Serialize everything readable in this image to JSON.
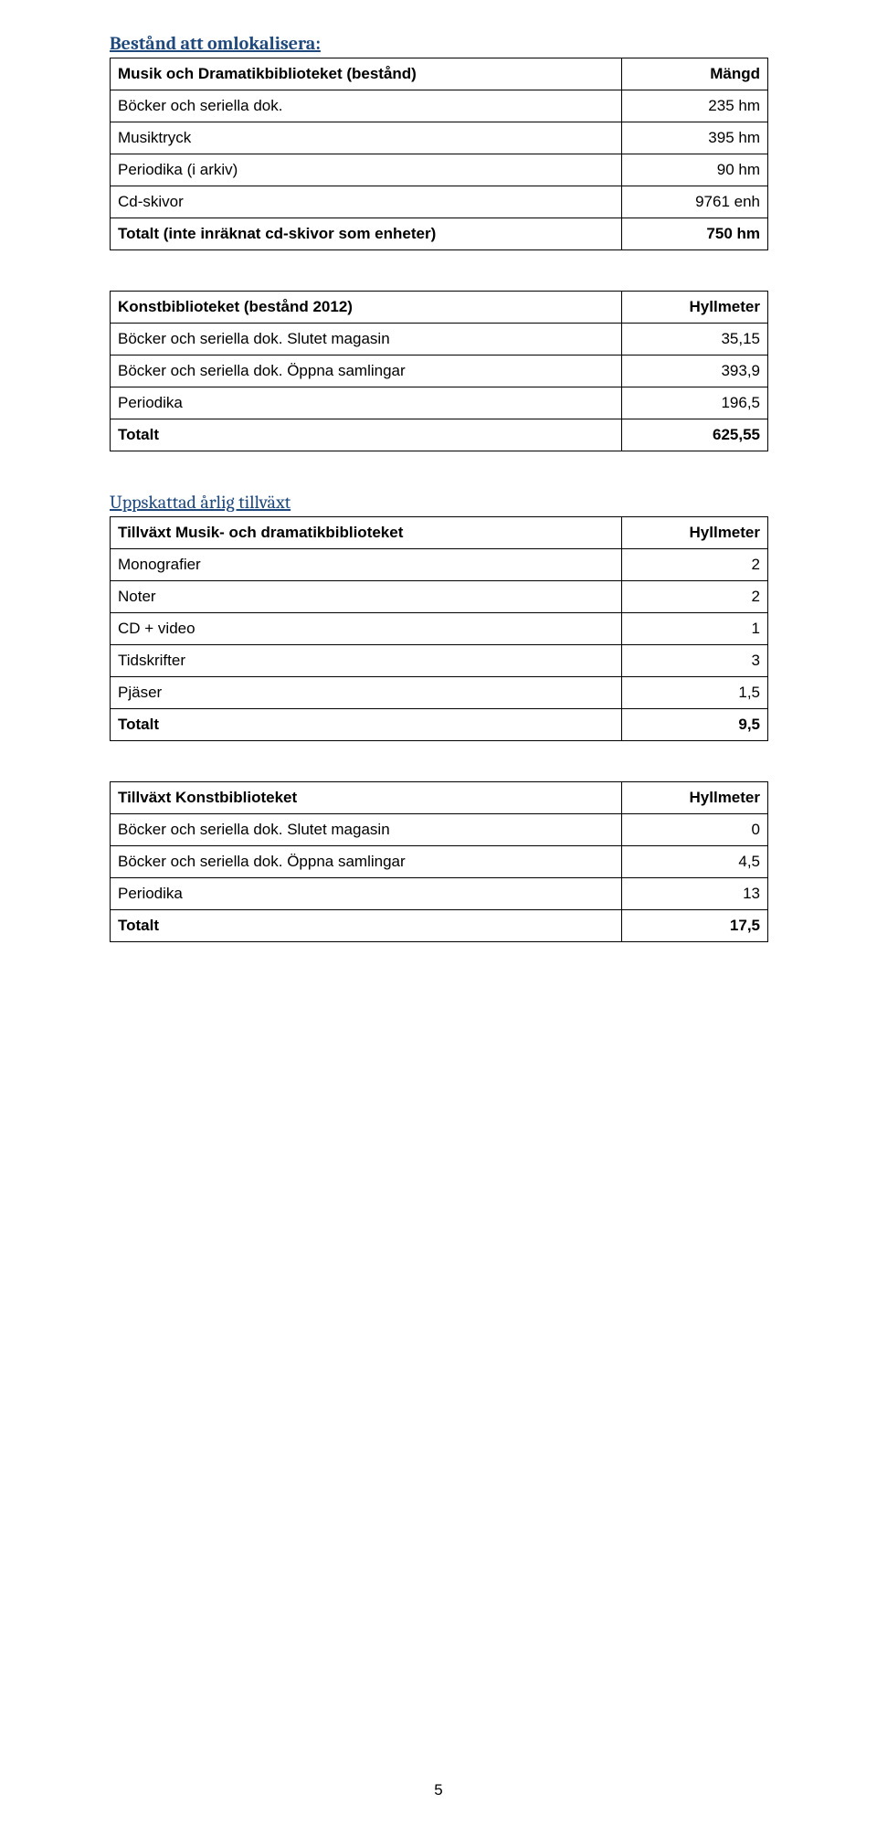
{
  "headings": {
    "bestand": "Bestånd att omlokalisera:",
    "uppskattad": "Uppskattad årlig tillväxt"
  },
  "table1": {
    "rows": [
      {
        "l": "Musik och Dramatikbiblioteket (bestånd)",
        "r": "Mängd",
        "bold": true
      },
      {
        "l": "Böcker och seriella dok.",
        "r": "235 hm"
      },
      {
        "l": "Musiktryck",
        "r": "395 hm"
      },
      {
        "l": "Periodika (i arkiv)",
        "r": "90 hm"
      },
      {
        "l": "Cd-skivor",
        "r": "9761 enh"
      },
      {
        "l": "Totalt (inte inräknat cd-skivor som enheter)",
        "r": "750 hm",
        "bold": true
      }
    ]
  },
  "table2": {
    "rows": [
      {
        "l": "Konstbiblioteket (bestånd 2012)",
        "r": "Hyllmeter",
        "bold": true
      },
      {
        "l": "Böcker och seriella dok. Slutet magasin",
        "r": "35,15"
      },
      {
        "l": "Böcker och seriella dok. Öppna samlingar",
        "r": "393,9"
      },
      {
        "l": "Periodika",
        "r": "196,5"
      },
      {
        "l": "Totalt",
        "r": "625,55",
        "bold": true
      }
    ]
  },
  "table3": {
    "rows": [
      {
        "l": "Tillväxt Musik- och dramatikbiblioteket",
        "r": "Hyllmeter",
        "bold": true
      },
      {
        "l": "Monografier",
        "r": "2"
      },
      {
        "l": "Noter",
        "r": "2"
      },
      {
        "l": "CD + video",
        "r": "1"
      },
      {
        "l": "Tidskrifter",
        "r": "3"
      },
      {
        "l": "Pjäser",
        "r": "1,5"
      },
      {
        "l": "Totalt",
        "r": "9,5",
        "bold": true
      }
    ]
  },
  "table4": {
    "rows": [
      {
        "l": "Tillväxt Konstbiblioteket",
        "r": "Hyllmeter",
        "bold": true
      },
      {
        "l": "Böcker och seriella dok. Slutet magasin",
        "r": "0"
      },
      {
        "l": "Böcker och seriella dok. Öppna samlingar",
        "r": "4,5"
      },
      {
        "l": "Periodika",
        "r": "13"
      },
      {
        "l": "Totalt",
        "r": "17,5",
        "bold": true
      }
    ]
  },
  "pageNumber": "5",
  "layout": {
    "colLeftWidth": 560,
    "colRightWidth": 160
  }
}
